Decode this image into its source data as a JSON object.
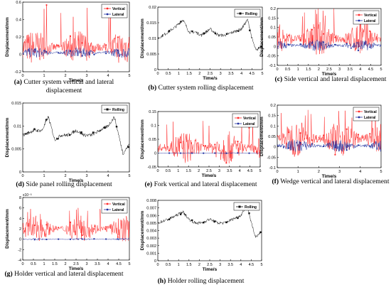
{
  "colors": {
    "vertical": "#ff2a2a",
    "lateral": "#1f2fa0",
    "rolling": "#111111"
  },
  "captions": [
    {
      "letter": "(a)",
      "text": "Cutter system vertical and lateral displacement"
    },
    {
      "letter": "(b)",
      "text": "Cutter system rolling displacement"
    },
    {
      "letter": "(c)",
      "text": "Side vertical and lateral displacement"
    },
    {
      "letter": "(d)",
      "text": "Side panel rolling displacement"
    },
    {
      "letter": "(e)",
      "text": "Fork vertical and lateral displacement"
    },
    {
      "letter": "(f)",
      "text": "Wedge vertical and lateral displacement"
    },
    {
      "letter": "(g)",
      "text": "Holder vertical and lateral displacement"
    },
    {
      "letter": "(h)",
      "text": "Holder rolling displacement"
    }
  ],
  "chart_data": [
    {
      "id": "a",
      "type": "line",
      "xlabel": "Time/s",
      "ylabel": "Displacement/mm",
      "xlim": [
        0,
        5
      ],
      "ylim": [
        -0.2,
        0.6
      ],
      "xticks": [
        "0",
        "1",
        "2",
        "3",
        "4",
        "5"
      ],
      "yticks": [
        "-0.2",
        "0",
        "0.2",
        "0.4",
        "0.6"
      ],
      "legend": [
        "Vertical",
        "Lateral"
      ],
      "legend_position": "top-right",
      "series": [
        {
          "name": "Vertical",
          "kind": "vl",
          "mean": 0.08,
          "amp": 0.2,
          "peak": 0.58,
          "x": [
            0,
            0.5,
            1,
            1.5,
            2,
            2.5,
            3,
            3.5,
            4,
            4.5,
            5
          ]
        },
        {
          "name": "Lateral",
          "kind": "vl",
          "mean": 0.02,
          "amp": 0.06,
          "x": [
            0,
            0.5,
            1,
            1.5,
            2,
            2.5,
            3,
            3.5,
            4,
            4.5,
            5
          ]
        }
      ]
    },
    {
      "id": "b",
      "type": "line",
      "xlabel": "Time/s",
      "ylabel": "Displacement/mm",
      "xlim": [
        0,
        5
      ],
      "ylim": [
        0,
        0.02
      ],
      "xticks": [
        "0",
        "0.5",
        "1",
        "1.5",
        "2",
        "2.5",
        "3",
        "3.5",
        "4",
        "4.5",
        "5"
      ],
      "yticks": [
        "0",
        "0.005",
        "0.01",
        "0.015",
        "0.02"
      ],
      "legend": [
        "Rolling"
      ],
      "legend_position": "top-right",
      "series": [
        {
          "name": "Rolling",
          "kind": "roll",
          "x": [
            0,
            0.5,
            0.9,
            1.2,
            1.5,
            1.8,
            2.1,
            2.5,
            2.9,
            3.2,
            3.6,
            4.0,
            4.3,
            4.5,
            4.7,
            5.0
          ],
          "y": [
            0.01,
            0.012,
            0.014,
            0.016,
            0.012,
            0.012,
            0.011,
            0.013,
            0.011,
            0.011,
            0.012,
            0.013,
            0.016,
            0.01,
            0.006,
            0.008
          ]
        }
      ]
    },
    {
      "id": "c",
      "type": "line",
      "xlabel": "Time/s",
      "ylabel": "Displacement/mm",
      "xlim": [
        0,
        5
      ],
      "ylim": [
        -0.1,
        0.2
      ],
      "xticks": [
        "0",
        "0.5",
        "1",
        "1.5",
        "2",
        "2.5",
        "3",
        "3.5",
        "4",
        "4.5",
        "5"
      ],
      "yticks": [
        "-0.1",
        "-0.05",
        "0",
        "0.05",
        "0.1",
        "0.15",
        "0.2"
      ],
      "legend": [
        "Vertical",
        "Lateral"
      ],
      "legend_position": "top-right",
      "series": [
        {
          "name": "Vertical",
          "kind": "vl",
          "mean": 0.04,
          "amp": 0.09,
          "peak": 0.2
        },
        {
          "name": "Lateral",
          "kind": "vl",
          "mean": 0.005,
          "amp": 0.03
        }
      ]
    },
    {
      "id": "d",
      "type": "line",
      "xlabel": "Time/s",
      "ylabel": "Displacement/mm",
      "xlim": [
        0,
        5
      ],
      "ylim": [
        0,
        0.015
      ],
      "xticks": [
        "0",
        "1",
        "2",
        "3",
        "4",
        "5"
      ],
      "yticks": [
        "0",
        "0.005",
        "0.01",
        "0.015"
      ],
      "legend": [
        "Rolling"
      ],
      "legend_position": "top-right",
      "series": [
        {
          "name": "Rolling",
          "kind": "roll",
          "x": [
            0,
            0.5,
            0.9,
            1.2,
            1.5,
            1.8,
            2.1,
            2.5,
            2.9,
            3.2,
            3.6,
            4.0,
            4.3,
            4.5,
            4.7,
            5.0
          ],
          "y": [
            0.008,
            0.009,
            0.009,
            0.012,
            0.007,
            0.008,
            0.008,
            0.009,
            0.008,
            0.008,
            0.009,
            0.01,
            0.012,
            0.008,
            0.004,
            0.006
          ]
        }
      ]
    },
    {
      "id": "e",
      "type": "line",
      "xlabel": "Time/s",
      "ylabel": "Displacement/mm",
      "xlim": [
        0,
        5
      ],
      "ylim": [
        -0.05,
        0.15
      ],
      "xticks": [
        "0",
        "0.5",
        "1",
        "1.5",
        "2",
        "2.5",
        "3",
        "3.5",
        "4",
        "4.5",
        "5"
      ],
      "yticks": [
        "-0.05",
        "0",
        "0.05",
        "0.1",
        "0.15"
      ],
      "legend": [
        "Vertical",
        "Lateral"
      ],
      "legend_position": "top-right",
      "series": [
        {
          "name": "Vertical",
          "kind": "vl",
          "mean": 0.02,
          "amp": 0.06,
          "peak": 0.12
        },
        {
          "name": "Lateral",
          "kind": "vl",
          "mean": 0.0,
          "amp": 0.002
        }
      ]
    },
    {
      "id": "f",
      "type": "line",
      "xlabel": "Time/s",
      "ylabel": "Displacement/mm",
      "xlim": [
        0,
        5
      ],
      "ylim": [
        -0.1,
        0.2
      ],
      "xticks": [
        "0",
        "1",
        "2",
        "3",
        "4",
        "5"
      ],
      "yticks": [
        "-0.1",
        "-0.05",
        "0",
        "0.05",
        "0.1",
        "0.15",
        "0.2"
      ],
      "legend": [
        "Vertical",
        "Lateral"
      ],
      "legend_position": "top-right",
      "series": [
        {
          "name": "Vertical",
          "kind": "vl",
          "mean": 0.04,
          "amp": 0.09,
          "peak": 0.18
        },
        {
          "name": "Lateral",
          "kind": "vl",
          "mean": 0.005,
          "amp": 0.03
        }
      ]
    },
    {
      "id": "g",
      "type": "line",
      "xlabel": "Time/s",
      "ylabel": "Displacement/mm",
      "xlim": [
        0,
        5
      ],
      "ylim": [
        -4,
        8
      ],
      "yexp": "x10⁻³",
      "xticks": [
        "0",
        "0.5",
        "1",
        "1.5",
        "2",
        "2.5",
        "3",
        "3.5",
        "4",
        "4.5",
        "5"
      ],
      "yticks": [
        "-4",
        "-2",
        "0",
        "2",
        "4",
        "6",
        "8"
      ],
      "legend": [
        "Vertical",
        "Lateral"
      ],
      "legend_position": "top-right",
      "series": [
        {
          "name": "Vertical",
          "kind": "vl",
          "mean": 2,
          "amp": 2.5,
          "peak": 6
        },
        {
          "name": "Lateral",
          "kind": "vl",
          "mean": 0,
          "amp": 0.2
        }
      ]
    },
    {
      "id": "h",
      "type": "line",
      "xlabel": "Time/s",
      "ylabel": "Displacement/mm",
      "xlim": [
        0,
        5
      ],
      "ylim": [
        0,
        0.008
      ],
      "xticks": [
        "0",
        "0.5",
        "1",
        "1.5",
        "2",
        "2.5",
        "3",
        "3.5",
        "4",
        "4.5",
        "5"
      ],
      "yticks": [
        "0",
        "0.001",
        "0.002",
        "0.003",
        "0.004",
        "0.005",
        "0.006",
        "0.007",
        "0.008"
      ],
      "legend": [
        "Rolling"
      ],
      "legend_position": "top-right",
      "series": [
        {
          "name": "Rolling",
          "kind": "roll",
          "x": [
            0,
            0.5,
            0.9,
            1.2,
            1.5,
            1.8,
            2.1,
            2.5,
            2.9,
            3.2,
            3.6,
            4.0,
            4.3,
            4.5,
            4.7,
            5.0
          ],
          "y": [
            0.005,
            0.0055,
            0.006,
            0.0065,
            0.0055,
            0.005,
            0.005,
            0.0055,
            0.005,
            0.005,
            0.0055,
            0.006,
            0.0075,
            0.005,
            0.0032,
            0.0038
          ]
        }
      ]
    }
  ]
}
